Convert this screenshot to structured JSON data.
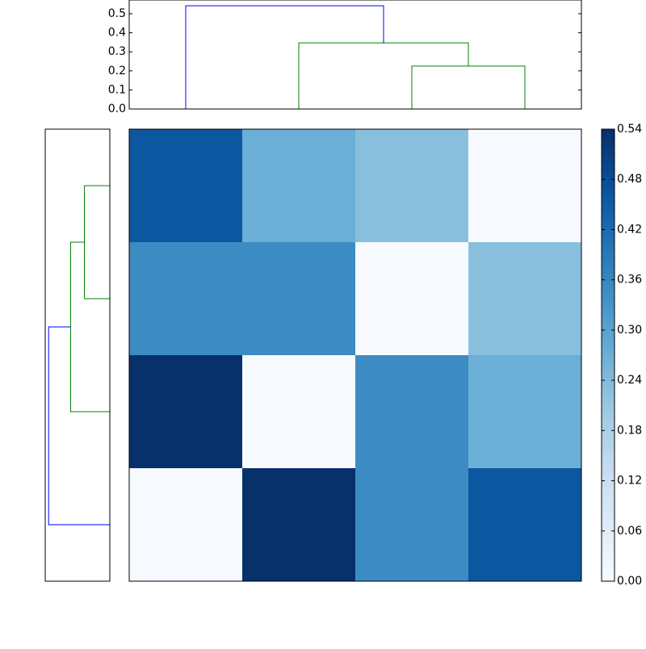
{
  "chart_data": [
    {
      "type": "dendrogram",
      "orientation": "top",
      "links": [
        {
          "positions": [
            25,
            25,
            35,
            35
          ],
          "heights": [
            0,
            0.225,
            0.225,
            0
          ],
          "color": "#008000"
        },
        {
          "positions": [
            15,
            15,
            30,
            30
          ],
          "heights": [
            0,
            0.347,
            0.347,
            0.225
          ],
          "color": "#008000"
        },
        {
          "positions": [
            5,
            5,
            22.5,
            22.5
          ],
          "heights": [
            0,
            0.542,
            0.542,
            0.347
          ],
          "color": "#0000ff"
        }
      ],
      "xlim": [
        0,
        40
      ],
      "ylim": [
        0,
        0.572
      ],
      "yticks": [
        {
          "value": 0,
          "label": "0.0"
        },
        0.1,
        0.2,
        0.3,
        0.4,
        0.5
      ]
    },
    {
      "type": "dendrogram",
      "orientation": "left",
      "links": [
        {
          "positions": [
            25,
            25,
            35,
            35
          ],
          "heights": [
            0,
            0.225,
            0.225,
            0
          ],
          "color": "#008000"
        },
        {
          "positions": [
            15,
            15,
            30,
            30
          ],
          "heights": [
            0,
            0.347,
            0.347,
            0.225
          ],
          "color": "#008000"
        },
        {
          "positions": [
            5,
            5,
            22.5,
            22.5
          ],
          "heights": [
            0,
            0.542,
            0.542,
            0.347
          ],
          "color": "#0000ff"
        }
      ],
      "xlim": [
        0.572,
        0
      ],
      "ylim": [
        0,
        40
      ]
    },
    {
      "type": "heatmap",
      "z": [
        [
          0.46,
          0.27,
          0.23,
          0.0
        ],
        [
          0.35,
          0.35,
          0.0,
          0.23
        ],
        [
          0.54,
          0.0,
          0.35,
          0.27
        ],
        [
          0.0,
          0.54,
          0.35,
          0.46
        ]
      ],
      "zlim": [
        0,
        0.54
      ],
      "colormap": [
        "#f7fbff",
        "#deebf7",
        "#c6dbef",
        "#9ecae1",
        "#6baed6",
        "#4292c6",
        "#2171b5",
        "#08519c",
        "#08306b"
      ],
      "colorbar_ticks": [
        {
          "value": 0,
          "label": "0.00"
        },
        {
          "value": 0.06,
          "label": "0.06"
        },
        {
          "value": 0.12,
          "label": "0.12"
        },
        {
          "value": 0.18,
          "label": "0.18"
        },
        {
          "value": 0.24,
          "label": "0.24"
        },
        {
          "value": 0.3,
          "label": "0.30"
        },
        {
          "value": 0.36,
          "label": "0.36"
        },
        {
          "value": 0.42,
          "label": "0.42"
        },
        {
          "value": 0.48,
          "label": "0.48"
        },
        {
          "value": 0.54,
          "label": "0.54"
        }
      ]
    }
  ]
}
